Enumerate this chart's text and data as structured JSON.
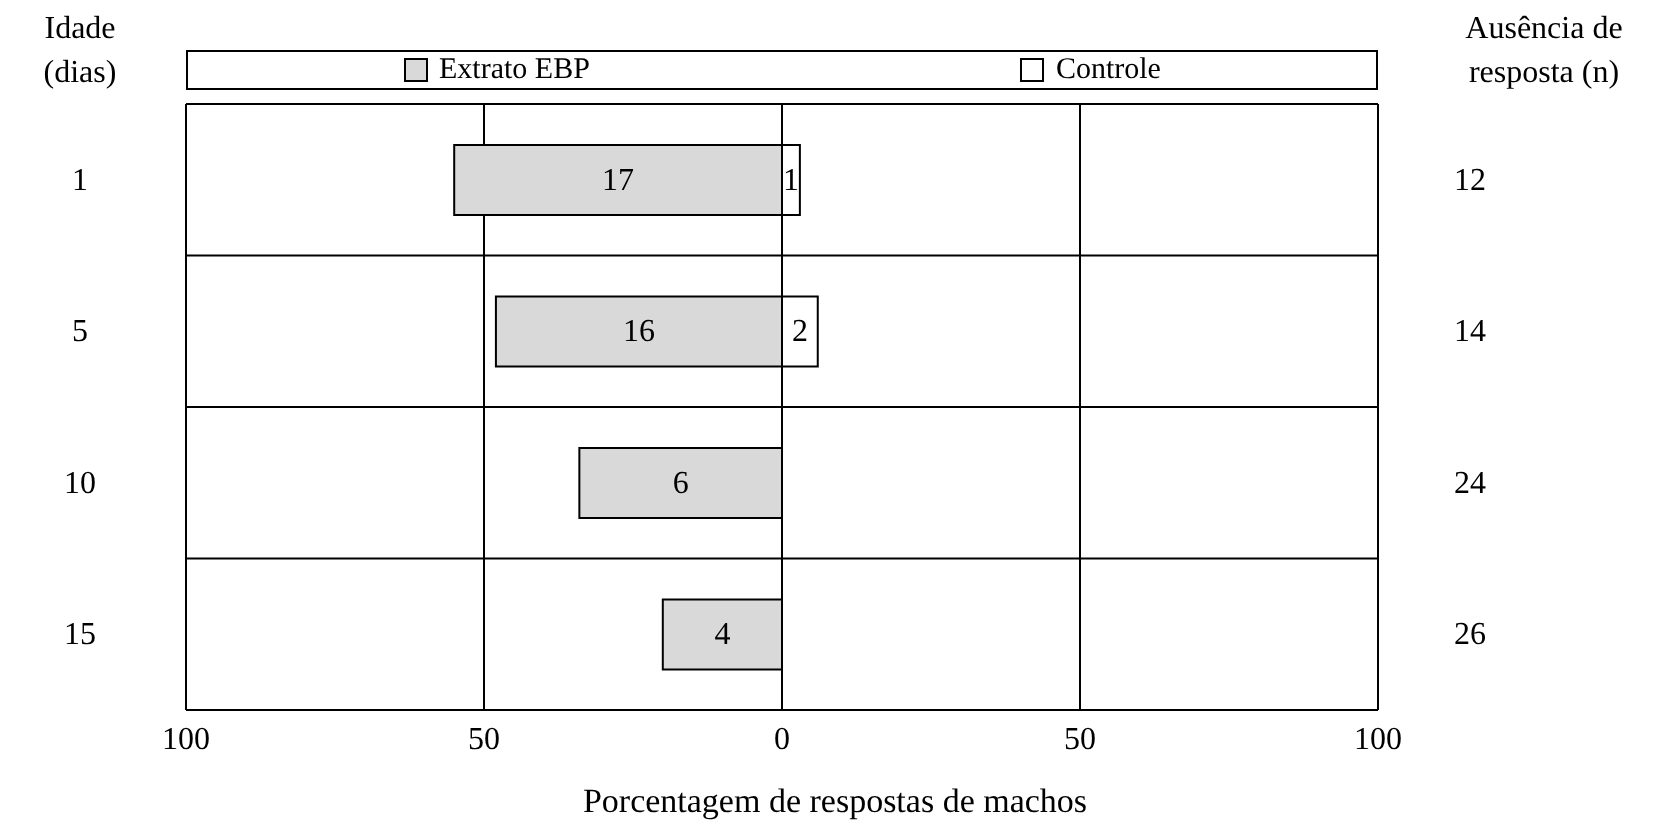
{
  "chart_data": {
    "type": "bar",
    "orientation": "horizontal",
    "xlabel": "Porcentagem de respostas de machos",
    "ylabel": "Idade (dias)",
    "y2label": "Ausência de resposta (n)",
    "categories": [
      "1",
      "5",
      "10",
      "15"
    ],
    "series": [
      {
        "name": "Extrato EBP",
        "color": "#d9d9d9",
        "values": [
          -55,
          -48,
          -34,
          -20
        ]
      },
      {
        "name": "Controle",
        "color": "#ffffff",
        "values": [
          3,
          6,
          0,
          0
        ]
      }
    ],
    "stacked": true,
    "annotations": [
      "12",
      "14",
      "24",
      "26",
      "17",
      "16",
      "6",
      "4",
      "1",
      "2"
    ],
    "xlim": [
      -100,
      100
    ],
    "xticks": [
      {
        "value": -100,
        "label": "100"
      },
      {
        "value": -50,
        "label": "50"
      },
      0,
      {
        "value": 50,
        "label": "50"
      },
      {
        "value": 100,
        "label": "100"
      }
    ],
    "grid": true,
    "legend": "top"
  }
}
